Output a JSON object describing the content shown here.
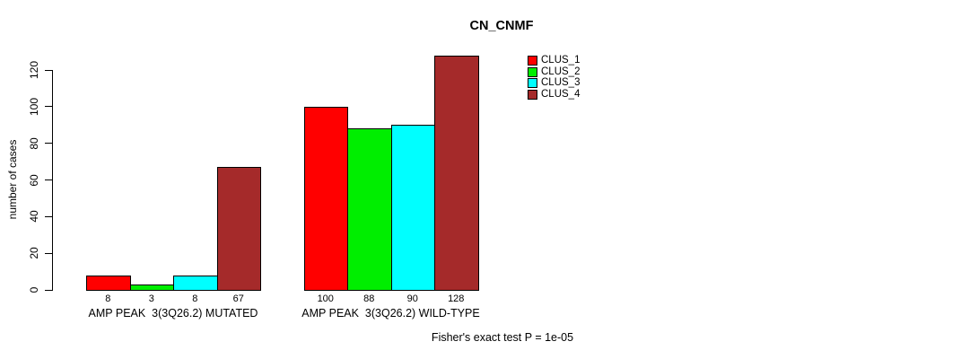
{
  "title": "CN_CNMF",
  "y_axis": {
    "label": "number of cases",
    "ticks": [
      0,
      20,
      40,
      60,
      80,
      100,
      120
    ]
  },
  "footer": "Fisher's exact test P = 1e-05",
  "chart_data": {
    "type": "bar",
    "title": "CN_CNMF",
    "xlabel": "",
    "ylabel": "number of cases",
    "ylim": [
      0,
      130
    ],
    "yticks": [
      0,
      20,
      40,
      60,
      80,
      100,
      120
    ],
    "grid": false,
    "legend_position": "top-right-inside",
    "categories": [
      "AMP PEAK  3(3Q26.2) MUTATED",
      "AMP PEAK  3(3Q26.2) WILD-TYPE"
    ],
    "series": [
      {
        "name": "CLUS_1",
        "color": "#FF0000",
        "values": [
          8,
          100
        ]
      },
      {
        "name": "CLUS_2",
        "color": "#00EE00",
        "values": [
          3,
          88
        ]
      },
      {
        "name": "CLUS_3",
        "color": "#00FFFF",
        "values": [
          8,
          90
        ]
      },
      {
        "name": "CLUS_4",
        "color": "#A52A2A",
        "values": [
          67,
          128
        ]
      }
    ],
    "bar_value_labels": [
      [
        8,
        3,
        8,
        67
      ],
      [
        100,
        88,
        90,
        128
      ]
    ],
    "annotation": "Fisher's exact test P = 1e-05"
  }
}
